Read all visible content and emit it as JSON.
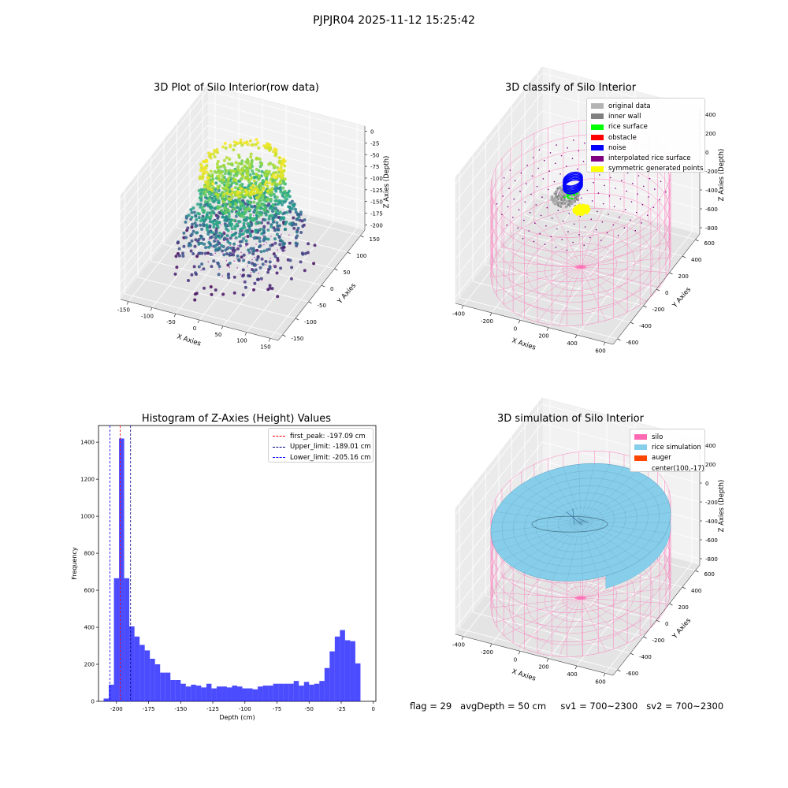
{
  "figure": {
    "suptitle": "PJPJR04 2025-11-12 15:25:42",
    "status": {
      "flag": "flag = 29",
      "avg_depth": "avgDepth = 50 cm",
      "sv1": "sv1 = 700~2300",
      "sv2": "sv2 = 700~2300"
    }
  },
  "panels": {
    "raw": {
      "title": "3D Plot of Silo Interior(row data)",
      "xlabel": "X Axies",
      "ylabel": "Y Axies",
      "zlabel": "Z Axies (Depth)",
      "xticks": [
        "-150",
        "-100",
        "-50",
        "0",
        "50",
        "100",
        "150"
      ],
      "yticks": [
        "-150",
        "-100",
        "-50",
        "0",
        "50",
        "100",
        "150"
      ],
      "zticks": [
        "0",
        "-25",
        "-50",
        "-75",
        "-100",
        "-125",
        "-150",
        "-175",
        "-200"
      ]
    },
    "classify": {
      "title": "3D classify of Silo Interior",
      "xlabel": "X Axies",
      "ylabel": "Y Axies",
      "zlabel": "Z Axies (Depth)",
      "xticks": [
        "-400",
        "-200",
        "0",
        "200",
        "400",
        "600"
      ],
      "yticks": [
        "-600",
        "-400",
        "-200",
        "0",
        "200",
        "400",
        "600"
      ],
      "zticks": [
        "400",
        "200",
        "0",
        "-200",
        "-400",
        "-600",
        "-800"
      ],
      "legend": [
        {
          "label": "original data",
          "color": "#b3b3b3"
        },
        {
          "label": "inner wall",
          "color": "#808080"
        },
        {
          "label": "rice surface",
          "color": "#00ff00"
        },
        {
          "label": "obstacle",
          "color": "#ff0000"
        },
        {
          "label": "noise",
          "color": "#0000ff"
        },
        {
          "label": "interpolated rice surface",
          "color": "#800080"
        },
        {
          "label": "symmetric generated points",
          "color": "#ffff00"
        }
      ]
    },
    "simulation": {
      "title": "3D simulation of Silo Interior",
      "xlabel": "X Axies",
      "ylabel": "Y Axies",
      "zlabel": "Z Axies (Depth)",
      "xticks": [
        "-400",
        "-200",
        "0",
        "200",
        "400",
        "600"
      ],
      "yticks": [
        "-600",
        "-400",
        "-200",
        "0",
        "200",
        "400",
        "600"
      ],
      "zticks": [
        "400",
        "200",
        "0",
        "-200",
        "-400",
        "-600",
        "-800"
      ],
      "legend": [
        {
          "label": "silo",
          "color": "#ff69b4"
        },
        {
          "label": "rice simulation",
          "color": "#87ceeb"
        },
        {
          "label": "auger",
          "color": "#ff4500"
        },
        {
          "label": "center(100,-17)",
          "color": ""
        }
      ]
    }
  },
  "chart_data": {
    "type": "bar",
    "title": "Histogram of Z-Axies (Height) Values",
    "xlabel": "Depth (cm)",
    "ylabel": "Frequency",
    "xlim": [
      -214,
      2
    ],
    "ylim": [
      0,
      1490
    ],
    "xticks": [
      -200,
      -175,
      -150,
      -125,
      -100,
      -75,
      -50,
      -25,
      0
    ],
    "yticks": [
      0,
      200,
      400,
      600,
      800,
      1000,
      1200,
      1400
    ],
    "bar_color": "#0000ff",
    "bins": [
      {
        "x0": -210.0,
        "x1": -206.0,
        "count": 15
      },
      {
        "x0": -206.0,
        "x1": -202.0,
        "count": 90
      },
      {
        "x0": -202.0,
        "x1": -198.0,
        "count": 665
      },
      {
        "x0": -198.0,
        "x1": -194.0,
        "count": 1420
      },
      {
        "x0": -194.0,
        "x1": -190.0,
        "count": 665
      },
      {
        "x0": -190.0,
        "x1": -186.0,
        "count": 405
      },
      {
        "x0": -186.0,
        "x1": -182.0,
        "count": 350
      },
      {
        "x0": -182.0,
        "x1": -178.0,
        "count": 305
      },
      {
        "x0": -178.0,
        "x1": -174.0,
        "count": 275
      },
      {
        "x0": -174.0,
        "x1": -170.0,
        "count": 230
      },
      {
        "x0": -170.0,
        "x1": -166.0,
        "count": 200
      },
      {
        "x0": -166.0,
        "x1": -162.0,
        "count": 155
      },
      {
        "x0": -162.0,
        "x1": -158.0,
        "count": 155
      },
      {
        "x0": -158.0,
        "x1": -154.0,
        "count": 115
      },
      {
        "x0": -154.0,
        "x1": -150.0,
        "count": 115
      },
      {
        "x0": -150.0,
        "x1": -146.0,
        "count": 95
      },
      {
        "x0": -146.0,
        "x1": -142.0,
        "count": 80
      },
      {
        "x0": -142.0,
        "x1": -138.0,
        "count": 90
      },
      {
        "x0": -138.0,
        "x1": -134.0,
        "count": 85
      },
      {
        "x0": -134.0,
        "x1": -130.0,
        "count": 75
      },
      {
        "x0": -130.0,
        "x1": -126.0,
        "count": 95
      },
      {
        "x0": -126.0,
        "x1": -122.0,
        "count": 70
      },
      {
        "x0": -122.0,
        "x1": -118.0,
        "count": 80
      },
      {
        "x0": -118.0,
        "x1": -114.0,
        "count": 80
      },
      {
        "x0": -114.0,
        "x1": -110.0,
        "count": 75
      },
      {
        "x0": -110.0,
        "x1": -106.0,
        "count": 85
      },
      {
        "x0": -106.0,
        "x1": -102.0,
        "count": 80
      },
      {
        "x0": -102.0,
        "x1": -98.0,
        "count": 70
      },
      {
        "x0": -98.0,
        "x1": -94.0,
        "count": 70
      },
      {
        "x0": -94.0,
        "x1": -90.0,
        "count": 65
      },
      {
        "x0": -90.0,
        "x1": -86.0,
        "count": 80
      },
      {
        "x0": -86.0,
        "x1": -82.0,
        "count": 85
      },
      {
        "x0": -82.0,
        "x1": -78.0,
        "count": 85
      },
      {
        "x0": -78.0,
        "x1": -74.0,
        "count": 95
      },
      {
        "x0": -74.0,
        "x1": -70.0,
        "count": 95
      },
      {
        "x0": -70.0,
        "x1": -66.0,
        "count": 95
      },
      {
        "x0": -66.0,
        "x1": -62.0,
        "count": 95
      },
      {
        "x0": -62.0,
        "x1": -58.0,
        "count": 110
      },
      {
        "x0": -58.0,
        "x1": -54.0,
        "count": 85
      },
      {
        "x0": -54.0,
        "x1": -50.0,
        "count": 105
      },
      {
        "x0": -50.0,
        "x1": -46.0,
        "count": 90
      },
      {
        "x0": -46.0,
        "x1": -42.0,
        "count": 95
      },
      {
        "x0": -42.0,
        "x1": -38.0,
        "count": 110
      },
      {
        "x0": -38.0,
        "x1": -34.0,
        "count": 180
      },
      {
        "x0": -34.0,
        "x1": -30.0,
        "count": 270
      },
      {
        "x0": -30.0,
        "x1": -26.0,
        "count": 350
      },
      {
        "x0": -26.0,
        "x1": -22.0,
        "count": 385
      },
      {
        "x0": -22.0,
        "x1": -18.0,
        "count": 330
      },
      {
        "x0": -18.0,
        "x1": -14.0,
        "count": 325
      },
      {
        "x0": -14.0,
        "x1": -10.0,
        "count": 205
      }
    ],
    "vlines": [
      {
        "label": "first_peak: -197.09 cm",
        "x": -197.09,
        "color": "#ff0000"
      },
      {
        "label": "Upper_limit: -189.01 cm",
        "x": -189.01,
        "color": "#00008b"
      },
      {
        "label": "Lower_limit: -205.16 cm",
        "x": -205.16,
        "color": "#0000ff"
      }
    ],
    "legend_position": "upper right"
  }
}
